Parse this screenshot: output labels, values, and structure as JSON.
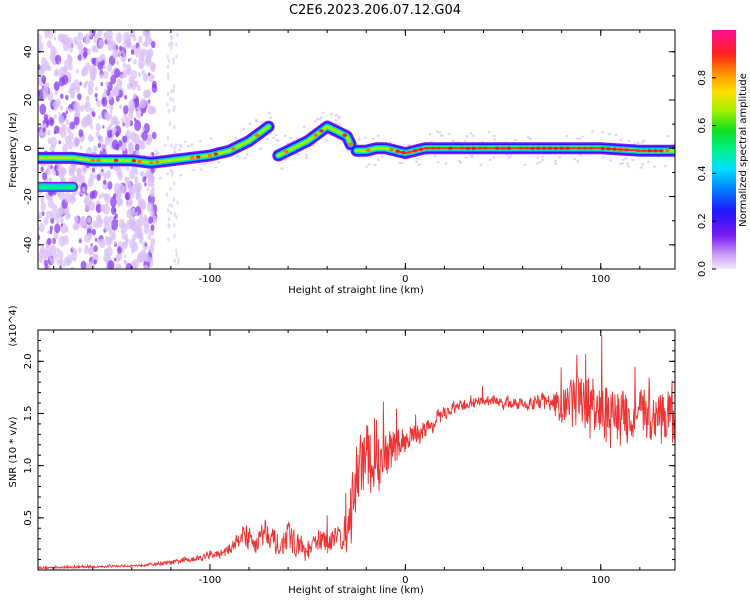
{
  "title": "C2E6.2023.206.07.12.G04",
  "chart_data": [
    {
      "type": "heatmap",
      "xlabel": "Height of straight line (km)",
      "ylabel": "Frequency (Hz)",
      "xlim": [
        -188,
        138
      ],
      "ylim": [
        -50,
        49
      ],
      "xticks": [
        -100,
        0,
        100
      ],
      "yticks": [
        -40,
        -20,
        0,
        20,
        40
      ],
      "colorbar": {
        "label": "Normalized spectral amplitude",
        "range": [
          0,
          1
        ],
        "ticks": [
          "0.0",
          "0.2",
          "0.4",
          "0.6",
          "0.8"
        ],
        "colors": [
          "#f3e8fb",
          "#7a1cf2",
          "#0022ff",
          "#00aaff",
          "#00f0d0",
          "#00e030",
          "#b0f000",
          "#ffd000",
          "#ff7000",
          "#ff1040",
          "#ff1080"
        ]
      },
      "trace": {
        "x": [
          -188,
          -180,
          -170,
          -160,
          -150,
          -140,
          -130,
          -120,
          -110,
          -100,
          -90,
          -80,
          -75,
          -70,
          -65,
          -60,
          -55,
          -50,
          -45,
          -40,
          -35,
          -30,
          -27,
          -25,
          -20,
          -15,
          -10,
          -5,
          0,
          10,
          20,
          40,
          60,
          80,
          100,
          120,
          138
        ],
        "y": [
          -4,
          -4,
          -4,
          -5,
          -5,
          -5,
          -6,
          -5,
          -4,
          -3,
          -1,
          3,
          6,
          9,
          -3,
          -1,
          1,
          3,
          6,
          9,
          7,
          5,
          0,
          -1,
          -1,
          0,
          0,
          -1,
          -2,
          0,
          0,
          0,
          0,
          0,
          0,
          -1,
          -1
        ]
      },
      "side_blob": {
        "x": [
          -188,
          -170
        ],
        "y": -16
      }
    },
    {
      "type": "line",
      "xlabel": "Height of straight line (km)",
      "ylabel": "SNR (10 * v/v)",
      "multiplier": "(x10^4)",
      "xlim": [
        -188,
        138
      ],
      "ylim": [
        0,
        2.3
      ],
      "xticks": [
        -100,
        0,
        100
      ],
      "yticks": [
        "0.5",
        "1.0",
        "1.5",
        "2.0"
      ],
      "series": [
        {
          "color": "#ee3333",
          "x": [
            -188,
            -160,
            -140,
            -120,
            -105,
            -95,
            -88,
            -84,
            -80,
            -76,
            -72,
            -68,
            -64,
            -60,
            -56,
            -50,
            -44,
            -40,
            -36,
            -32,
            -28,
            -24,
            -20,
            -16,
            -12,
            -8,
            -4,
            0,
            5,
            10,
            15,
            20,
            25,
            30,
            35,
            40,
            45,
            50,
            55,
            60,
            65,
            70,
            75,
            80,
            85,
            90,
            95,
            100,
            105,
            110,
            115,
            120,
            125,
            130,
            138
          ],
          "y": [
            0.02,
            0.03,
            0.04,
            0.07,
            0.12,
            0.15,
            0.22,
            0.35,
            0.3,
            0.25,
            0.4,
            0.3,
            0.2,
            0.35,
            0.25,
            0.15,
            0.3,
            0.25,
            0.35,
            0.3,
            0.5,
            1.0,
            1.1,
            0.9,
            1.1,
            1.15,
            1.2,
            1.25,
            1.3,
            1.35,
            1.4,
            1.5,
            1.55,
            1.58,
            1.6,
            1.62,
            1.63,
            1.6,
            1.6,
            1.58,
            1.6,
            1.62,
            1.6,
            1.55,
            1.6,
            1.62,
            1.55,
            1.5,
            1.45,
            1.5,
            1.4,
            1.5,
            1.45,
            1.5,
            1.45
          ],
          "noise": [
            0.01,
            0.01,
            0.01,
            0.02,
            0.03,
            0.04,
            0.05,
            0.1,
            0.12,
            0.1,
            0.12,
            0.12,
            0.1,
            0.12,
            0.12,
            0.08,
            0.1,
            0.1,
            0.12,
            0.12,
            0.3,
            0.4,
            0.35,
            0.3,
            0.25,
            0.2,
            0.15,
            0.12,
            0.1,
            0.08,
            0.08,
            0.07,
            0.06,
            0.05,
            0.05,
            0.05,
            0.05,
            0.05,
            0.06,
            0.06,
            0.07,
            0.08,
            0.1,
            0.15,
            0.25,
            0.3,
            0.3,
            0.28,
            0.28,
            0.25,
            0.25,
            0.25,
            0.25,
            0.25,
            0.25
          ]
        }
      ]
    }
  ]
}
